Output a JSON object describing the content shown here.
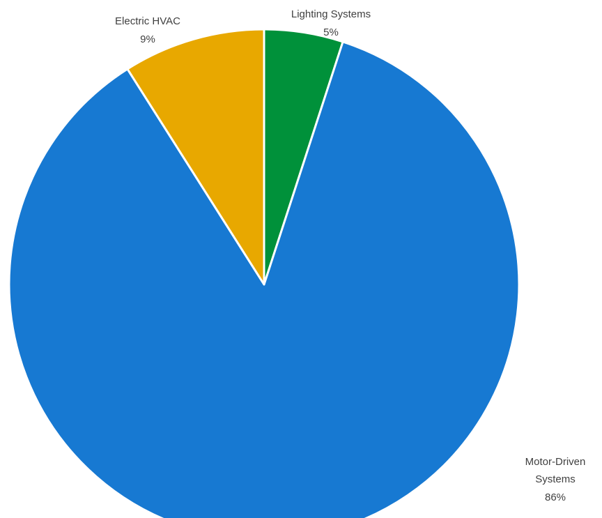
{
  "chart_data": {
    "type": "pie",
    "title": "",
    "slices": [
      {
        "name": "Lighting Systems",
        "value": 5,
        "value_label": "5%",
        "color": "#00913a"
      },
      {
        "name": "Motor-Driven Systems",
        "value": 86,
        "value_label": "86%",
        "color": "#1779d2"
      },
      {
        "name": "Electric HVAC",
        "value": 9,
        "value_label": "9%",
        "color": "#e8a800"
      }
    ],
    "start_angle": "12 o'clock, clockwise",
    "legend": "none (data labels outside slices)"
  }
}
